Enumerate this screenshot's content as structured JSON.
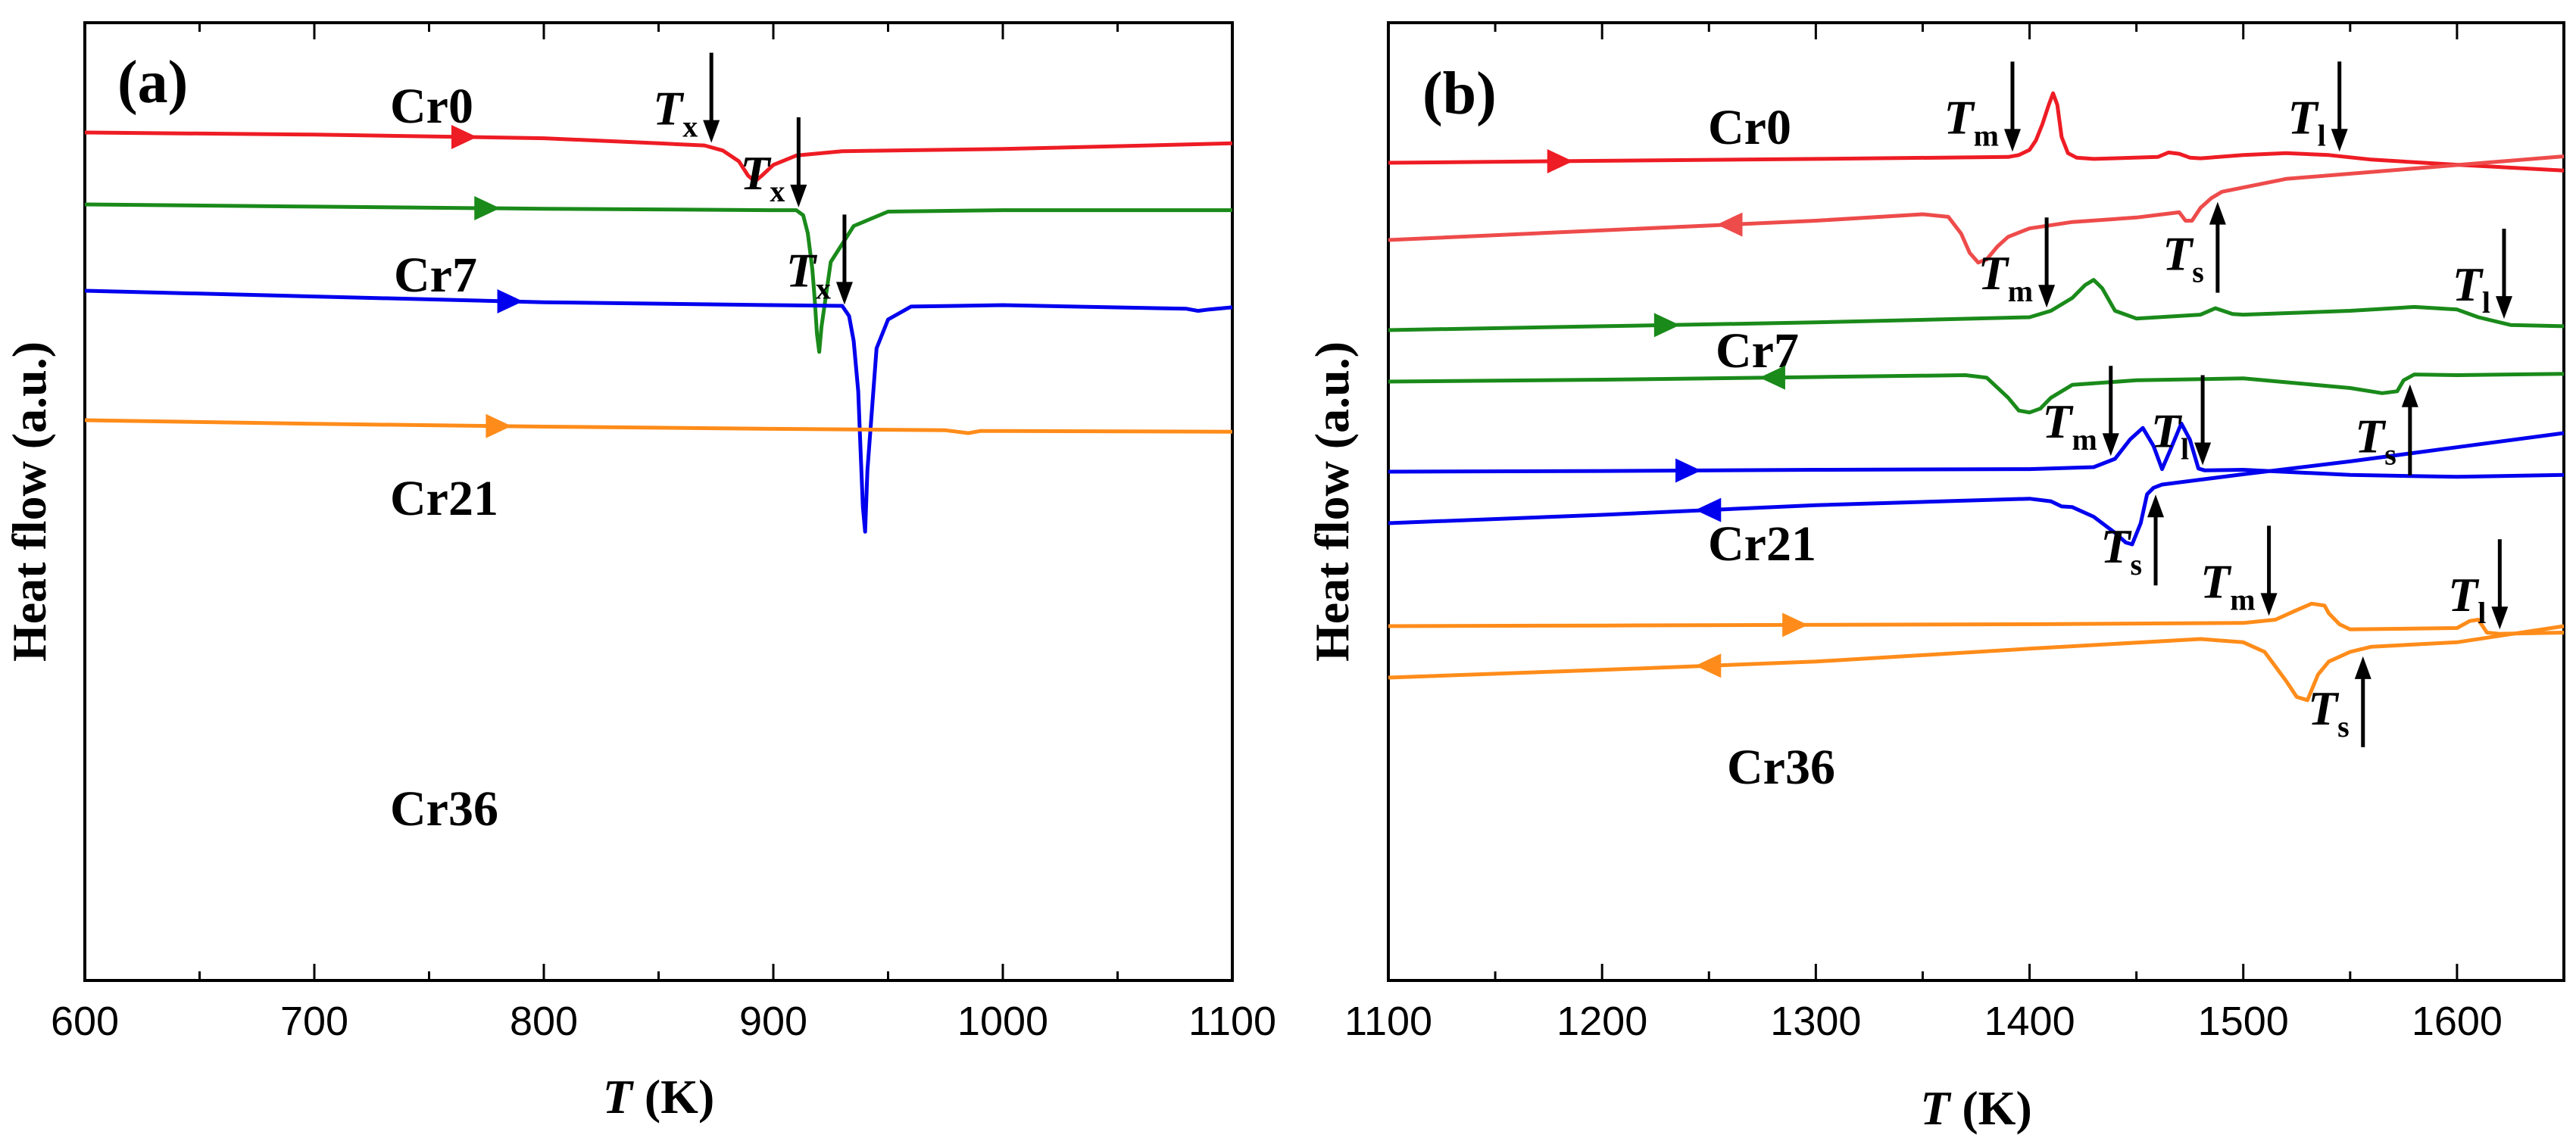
{
  "chart_data": [
    {
      "type": "line",
      "panel_label": "(a)",
      "xlabel_italic": "T",
      "xlabel_unit": "(K)",
      "ylabel": "Heat flow (a.u.)",
      "xlim": [
        600,
        1100
      ],
      "xticks": [
        600,
        700,
        800,
        900,
        1000,
        1100
      ],
      "yticks_shown": false,
      "series": [
        {
          "name": "Cr0",
          "color": "#ee1c24",
          "offset": 0,
          "direction": "heating",
          "arrow_at": 765,
          "x": [
            600,
            700,
            800,
            850,
            870,
            878,
            885,
            889,
            892,
            895,
            900,
            910,
            930,
            1000,
            1100
          ],
          "y": [
            0,
            -0.3,
            -0.8,
            -1.5,
            -1.8,
            -2.5,
            -4.0,
            -6.0,
            -6.8,
            -6.0,
            -4.5,
            -3.2,
            -2.6,
            -2.3,
            -1.5
          ]
        },
        {
          "name": "Cr7",
          "color": "#1a8a1a",
          "offset": -10,
          "direction": "heating",
          "arrow_at": 775,
          "x": [
            600,
            700,
            800,
            900,
            910,
            913,
            915,
            917,
            918,
            919,
            920,
            921,
            925,
            935,
            950,
            1000,
            1100
          ],
          "y": [
            0,
            -0.3,
            -0.6,
            -0.8,
            -0.8,
            -1.5,
            -4.0,
            -9.0,
            -13.0,
            -18.0,
            -20.5,
            -17.0,
            -8.0,
            -3.0,
            -1.0,
            -0.8,
            -0.8
          ]
        },
        {
          "name": "Cr21",
          "color": "#0000ee",
          "offset": -22,
          "direction": "heating",
          "arrow_at": 785,
          "x": [
            600,
            700,
            800,
            900,
            930,
            933,
            935,
            937,
            938,
            939,
            940,
            941,
            945,
            950,
            960,
            1000,
            1080,
            1085,
            1090,
            1100
          ],
          "y": [
            0,
            -0.8,
            -1.6,
            -2.0,
            -2.1,
            -3.5,
            -7.0,
            -14.0,
            -22.0,
            -30.0,
            -33.5,
            -25.0,
            -8.0,
            -4.0,
            -2.2,
            -2.0,
            -2.5,
            -2.8,
            -2.6,
            -2.3
          ]
        },
        {
          "name": "Cr36",
          "color": "#ff8c1a",
          "offset": -40,
          "direction": "heating",
          "arrow_at": 780,
          "x": [
            600,
            700,
            800,
            900,
            975,
            980,
            985,
            990,
            1000,
            1100
          ],
          "y": [
            0,
            -0.5,
            -0.9,
            -1.2,
            -1.4,
            -1.6,
            -1.8,
            -1.5,
            -1.5,
            -1.6
          ]
        }
      ],
      "annotations": [
        {
          "main": "T",
          "sub": "x",
          "x": 873,
          "series": "Cr0",
          "arrow": "down"
        },
        {
          "main": "T",
          "sub": "x",
          "x": 911,
          "series": "Cr7",
          "arrow": "down"
        },
        {
          "main": "T",
          "sub": "x",
          "x": 931,
          "series": "Cr21",
          "arrow": "down"
        }
      ]
    },
    {
      "type": "line",
      "panel_label": "(b)",
      "xlabel_italic": "T",
      "xlabel_unit": "(K)",
      "ylabel": "Heat flow (a.u.)",
      "xlim": [
        1100,
        1650
      ],
      "xticks": [
        1100,
        1200,
        1300,
        1400,
        1500,
        1600
      ],
      "yticks_shown": false,
      "series": [
        {
          "name": "Cr0",
          "color": "#ee1c24",
          "offset": 0,
          "direction": "heating",
          "arrow_at": 1180,
          "x": [
            1100,
            1200,
            1300,
            1390,
            1395,
            1400,
            1403,
            1406,
            1409,
            1411,
            1413,
            1415,
            1418,
            1422,
            1430,
            1460,
            1465,
            1470,
            1475,
            1480,
            1500,
            1520,
            1540,
            1560,
            1600,
            1650
          ],
          "y": [
            0,
            0.3,
            0.6,
            0.9,
            1.2,
            2.0,
            3.5,
            6.0,
            9.0,
            10.8,
            9.0,
            4.0,
            1.5,
            0.8,
            0.6,
            0.9,
            1.6,
            1.4,
            0.8,
            0.7,
            1.2,
            1.5,
            1.2,
            0.5,
            -0.3,
            -1.2
          ]
        },
        {
          "name": "Cr0",
          "color": "#ee4b4b",
          "offset": -12,
          "direction": "cooling",
          "arrow_at": 1260,
          "x": [
            1100,
            1200,
            1300,
            1350,
            1362,
            1368,
            1372,
            1376,
            1380,
            1385,
            1390,
            1400,
            1420,
            1450,
            1470,
            1473,
            1476,
            1480,
            1485,
            1490,
            1520,
            1650
          ],
          "y": [
            0,
            1.5,
            3.0,
            4.0,
            3.6,
            1.0,
            -2.0,
            -3.5,
            -3.0,
            -1.0,
            0.5,
            1.8,
            2.8,
            3.5,
            4.3,
            3.0,
            3.0,
            5.0,
            6.5,
            7.5,
            9.5,
            13.0
          ]
        },
        {
          "name": "Cr7",
          "color": "#1a8a1a",
          "offset": -26,
          "direction": "heating",
          "arrow_at": 1230,
          "x": [
            1100,
            1200,
            1300,
            1400,
            1410,
            1420,
            1426,
            1430,
            1434,
            1440,
            1450,
            1480,
            1487,
            1495,
            1500,
            1550,
            1580,
            1600,
            1610,
            1625,
            1650
          ],
          "y": [
            0,
            0.6,
            1.2,
            2.0,
            3.0,
            5.0,
            7.0,
            7.8,
            6.5,
            3.0,
            1.8,
            2.4,
            3.4,
            2.5,
            2.4,
            3.0,
            3.6,
            3.2,
            2.0,
            0.8,
            0.6
          ]
        },
        {
          "name": "Cr7",
          "color": "#1a8a1a",
          "offset": -34,
          "direction": "cooling",
          "arrow_at": 1280,
          "x": [
            1100,
            1200,
            1300,
            1370,
            1380,
            1390,
            1395,
            1400,
            1405,
            1410,
            1420,
            1450,
            1500,
            1550,
            1565,
            1572,
            1575,
            1580,
            1600,
            1650
          ],
          "y": [
            0,
            0.3,
            0.7,
            1.0,
            0.6,
            -2.5,
            -4.5,
            -4.8,
            -4.2,
            -2.5,
            -0.5,
            0.2,
            0.5,
            -1.0,
            -1.8,
            -1.5,
            0.2,
            1.1,
            1.0,
            1.2
          ]
        },
        {
          "name": "Cr21",
          "color": "#0000ee",
          "offset": -48,
          "direction": "heating",
          "arrow_at": 1240,
          "x": [
            1100,
            1200,
            1300,
            1400,
            1430,
            1440,
            1447,
            1453,
            1458,
            1462,
            1466,
            1471,
            1475,
            1479,
            1482,
            1500,
            1550,
            1600,
            1650
          ],
          "y": [
            0,
            0.1,
            0.3,
            0.4,
            0.7,
            2.0,
            5.0,
            6.8,
            4.0,
            0.4,
            3.5,
            7.5,
            5.0,
            0.5,
            0.2,
            0.3,
            -0.5,
            -0.8,
            -0.5
          ]
        },
        {
          "name": "Cr21",
          "color": "#0000ee",
          "offset": -56,
          "direction": "cooling",
          "arrow_at": 1250,
          "x": [
            1100,
            1200,
            1300,
            1400,
            1410,
            1415,
            1420,
            1430,
            1440,
            1445,
            1448,
            1452,
            1455,
            1458,
            1462,
            1500,
            1550,
            1600,
            1650
          ],
          "y": [
            0,
            1.3,
            2.8,
            3.8,
            3.4,
            2.6,
            2.5,
            1.0,
            -1.5,
            -3.0,
            -3.3,
            0.0,
            4.5,
            5.5,
            6.0,
            7.6,
            9.6,
            11.8,
            14.0
          ]
        },
        {
          "name": "Cr36",
          "color": "#ff8c1a",
          "offset": -72,
          "direction": "heating",
          "arrow_at": 1290,
          "x": [
            1100,
            1200,
            1300,
            1400,
            1500,
            1515,
            1525,
            1532,
            1538,
            1540,
            1545,
            1550,
            1600,
            1606,
            1610,
            1614,
            1620,
            1650
          ],
          "y": [
            0,
            0.1,
            0.2,
            0.3,
            0.5,
            1.0,
            2.5,
            3.5,
            3.2,
            2.0,
            0.3,
            -0.5,
            -0.3,
            0.8,
            1.0,
            -1.0,
            -1.2,
            -1.0
          ]
        },
        {
          "name": "Cr36",
          "color": "#ff8c1a",
          "offset": -80,
          "direction": "cooling",
          "arrow_at": 1250,
          "x": [
            1100,
            1200,
            1300,
            1400,
            1480,
            1500,
            1510,
            1520,
            1525,
            1530,
            1535,
            1540,
            1550,
            1560,
            1600,
            1650
          ],
          "y": [
            0,
            1.2,
            2.5,
            4.5,
            6.0,
            5.5,
            4.0,
            -0.5,
            -3.0,
            -3.5,
            0.5,
            2.5,
            4.0,
            4.8,
            5.5,
            8.0
          ]
        }
      ],
      "annotations": [
        {
          "main": "T",
          "sub": "m",
          "x": 1392,
          "series_index": 0,
          "arrow": "down"
        },
        {
          "main": "T",
          "sub": "l",
          "x": 1545,
          "series_index": 0,
          "arrow": "down"
        },
        {
          "main": "T",
          "sub": "s",
          "x": 1488,
          "series_index": 1,
          "arrow": "up"
        },
        {
          "main": "T",
          "sub": "m",
          "x": 1408,
          "series_index": 2,
          "arrow": "down"
        },
        {
          "main": "T",
          "sub": "l",
          "x": 1622,
          "series_index": 2,
          "arrow": "down"
        },
        {
          "main": "T",
          "sub": "s",
          "x": 1578,
          "series_index": 3,
          "arrow": "up"
        },
        {
          "main": "T",
          "sub": "m",
          "x": 1438,
          "series_index": 4,
          "arrow": "down"
        },
        {
          "main": "T",
          "sub": "l",
          "x": 1481,
          "series_index": 4,
          "arrow": "down"
        },
        {
          "main": "T",
          "sub": "s",
          "x": 1459,
          "series_index": 5,
          "arrow": "up"
        },
        {
          "main": "T",
          "sub": "m",
          "x": 1512,
          "series_index": 6,
          "arrow": "down"
        },
        {
          "main": "T",
          "sub": "l",
          "x": 1620,
          "series_index": 6,
          "arrow": "down"
        },
        {
          "main": "T",
          "sub": "s",
          "x": 1556,
          "series_index": 7,
          "arrow": "up"
        }
      ]
    }
  ]
}
